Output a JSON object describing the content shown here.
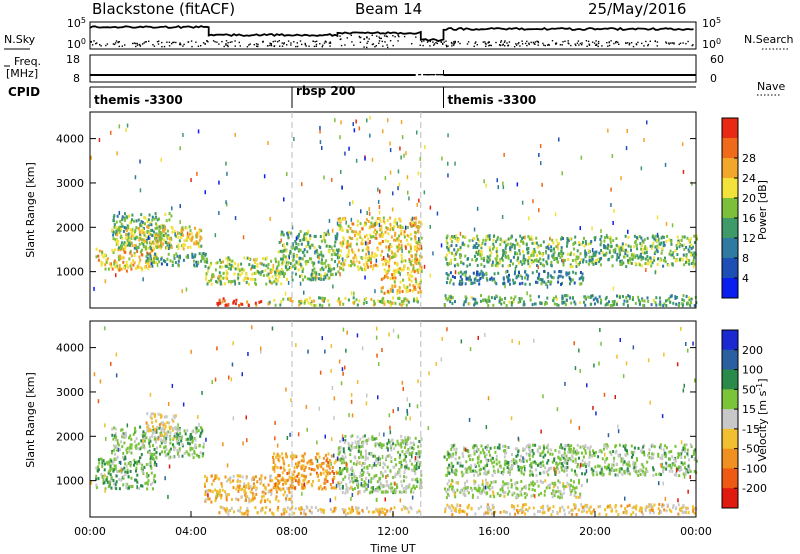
{
  "header": {
    "station": "Blackstone (fitACF)",
    "beam": "Beam 14",
    "date": "25/May/2016"
  },
  "strip_labels": {
    "nsky": "N.Sky",
    "freq_top": "Freq.",
    "freq_unit": "[MHz]",
    "cpid": "CPID",
    "nsearch": "N.Search",
    "nave": "Nave"
  },
  "strip_ticks": {
    "nsky_left": [
      "10^5",
      "10^0"
    ],
    "nsky_right": [
      "10^5",
      "10^0"
    ],
    "freq_left": [
      "18",
      "8"
    ],
    "nave_right": [
      "60",
      "0"
    ]
  },
  "cpid_segments": [
    {
      "label": "themis -3300",
      "start_hour": 0,
      "end_hour": 8.0
    },
    {
      "label": "rbsp 200",
      "start_hour": 8.0,
      "end_hour": 14.0
    },
    {
      "label": "themis -3300",
      "start_hour": 14.0,
      "end_hour": 24.0
    }
  ],
  "chart_data": [
    {
      "type": "heatmap",
      "panel": "power",
      "ylabel": "Slant Range [km]",
      "ylim": [
        180,
        4600
      ],
      "yticks": [
        "1000",
        "2000",
        "3000",
        "4000"
      ],
      "colorbar_label": "Power [dB]",
      "colorbar_ticks": [
        "4",
        "8",
        "12",
        "16",
        "20",
        "24",
        "28"
      ],
      "colors": [
        "#0a1ef0",
        "#1e4fb4",
        "#2f7aa0",
        "#3f9a6a",
        "#7cbf3a",
        "#f2e23a",
        "#f2a62a",
        "#f06a1c",
        "#e82a14"
      ],
      "regions": [
        {
          "t": [
            0.2,
            2.6
          ],
          "r": [
            1000,
            1500
          ],
          "lvl": 0.7
        },
        {
          "t": [
            0.8,
            3.2
          ],
          "r": [
            1500,
            2300
          ],
          "lvl": 0.45
        },
        {
          "t": [
            1.0,
            4.4
          ],
          "r": [
            1500,
            2000
          ],
          "lvl": 0.6
        },
        {
          "t": [
            2.2,
            4.6
          ],
          "r": [
            1100,
            1400
          ],
          "lvl": 0.35
        },
        {
          "t": [
            4.5,
            7.6
          ],
          "r": [
            700,
            1300
          ],
          "lvl": 0.55
        },
        {
          "t": [
            7.4,
            9.8
          ],
          "r": [
            800,
            1900
          ],
          "lvl": 0.45
        },
        {
          "t": [
            9.8,
            13.1
          ],
          "r": [
            1000,
            2200
          ],
          "lvl": 0.65
        },
        {
          "t": [
            11.5,
            13.1
          ],
          "r": [
            500,
            1000
          ],
          "lvl": 0.7
        },
        {
          "t": [
            5.0,
            6.8
          ],
          "r": [
            220,
            380
          ],
          "lvl": 0.95
        },
        {
          "t": [
            7.0,
            13.0
          ],
          "r": [
            220,
            400
          ],
          "lvl": 0.55
        },
        {
          "t": [
            14.0,
            24.0
          ],
          "r": [
            1100,
            1800
          ],
          "lvl": 0.45
        },
        {
          "t": [
            14.0,
            19.5
          ],
          "r": [
            700,
            1000
          ],
          "lvl": 0.3
        },
        {
          "t": [
            14.0,
            24.0
          ],
          "r": [
            220,
            450
          ],
          "lvl": 0.4
        }
      ]
    },
    {
      "type": "heatmap",
      "panel": "velocity",
      "ylabel": "Slant Range [km]",
      "ylim": [
        180,
        4600
      ],
      "yticks": [
        "1000",
        "2000",
        "3000",
        "4000"
      ],
      "colorbar_label": "Velocity [m s^-1]",
      "colorbar_ticks": [
        "200",
        "100",
        "50",
        "15",
        "-15",
        "-50",
        "-100",
        "-200"
      ],
      "colors": [
        "#1a2ad0",
        "#2a5fa0",
        "#2a8a4a",
        "#7ac43a",
        "#c8c8c8",
        "#f0c030",
        "#f09020",
        "#ee5a14",
        "#e01a10"
      ],
      "xlabel": "Time UT",
      "xticks": [
        "00:00",
        "04:00",
        "08:00",
        "12:00",
        "16:00",
        "20:00",
        "00:00"
      ],
      "xlim_hours": [
        0,
        24
      ],
      "regions": [
        {
          "t": [
            0.2,
            2.6
          ],
          "r": [
            800,
            1500
          ],
          "lvl": 0.35
        },
        {
          "t": [
            0.8,
            4.5
          ],
          "r": [
            1500,
            2200
          ],
          "lvl": 0.4
        },
        {
          "t": [
            2.2,
            3.4
          ],
          "r": [
            1900,
            2500
          ],
          "lvl": 0.6
        },
        {
          "t": [
            4.5,
            8.0
          ],
          "r": [
            500,
            1100
          ],
          "lvl": 0.65
        },
        {
          "t": [
            7.2,
            9.8
          ],
          "r": [
            800,
            1600
          ],
          "lvl": 0.7
        },
        {
          "t": [
            9.8,
            13.1
          ],
          "r": [
            700,
            2000
          ],
          "lvl": 0.42
        },
        {
          "t": [
            5.0,
            13.0
          ],
          "r": [
            220,
            400
          ],
          "lvl": 0.62
        },
        {
          "t": [
            14.0,
            24.0
          ],
          "r": [
            1100,
            1800
          ],
          "lvl": 0.4
        },
        {
          "t": [
            14.0,
            19.5
          ],
          "r": [
            600,
            1000
          ],
          "lvl": 0.45
        },
        {
          "t": [
            14.0,
            24.0
          ],
          "r": [
            220,
            450
          ],
          "lvl": 0.6
        }
      ]
    }
  ]
}
